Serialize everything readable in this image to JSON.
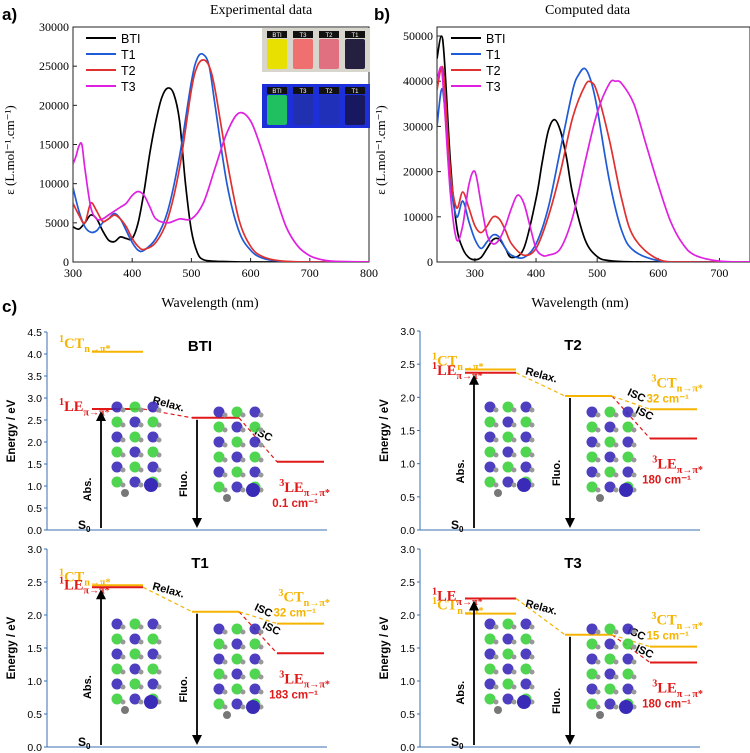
{
  "chart_data": [
    {
      "type": "line",
      "panel_label": "a)",
      "title": "Experimental data",
      "xlabel": "Wavelength (nm)",
      "ylabel": "ε (L.mol⁻¹.cm⁻¹)",
      "xlim": [
        300,
        800
      ],
      "ylim": [
        0,
        30000
      ],
      "xticks": [
        300,
        400,
        500,
        600,
        700,
        800
      ],
      "yticks": [
        0,
        5000,
        10000,
        15000,
        20000,
        25000,
        30000
      ],
      "legend": "top-left",
      "inset_vials": [
        "BTI",
        "T3",
        "T2",
        "T1"
      ],
      "series": [
        {
          "name": "BTI",
          "color": "#000000",
          "x": [
            300,
            310,
            320,
            330,
            340,
            350,
            360,
            370,
            380,
            390,
            400,
            410,
            420,
            430,
            440,
            450,
            460,
            470,
            480,
            490,
            500,
            510,
            520,
            540,
            560,
            600,
            700,
            800
          ],
          "y": [
            4500,
            4200,
            5000,
            6000,
            5500,
            4000,
            2800,
            2600,
            3200,
            3000,
            3000,
            5000,
            9000,
            14000,
            18000,
            21000,
            22200,
            21500,
            18000,
            10000,
            4000,
            1200,
            300,
            100,
            50,
            0,
            0,
            0
          ]
        },
        {
          "name": "T1",
          "color": "#1f5bd6",
          "x": [
            300,
            310,
            320,
            330,
            340,
            350,
            360,
            370,
            380,
            390,
            400,
            410,
            420,
            440,
            460,
            480,
            500,
            510,
            520,
            530,
            540,
            560,
            580,
            600,
            620,
            650,
            700,
            800
          ],
          "y": [
            9500,
            6500,
            4500,
            3800,
            4000,
            5000,
            5500,
            6200,
            5500,
            4000,
            2500,
            1500,
            1500,
            3000,
            6500,
            13500,
            23000,
            26000,
            26500,
            25000,
            20000,
            10000,
            4000,
            1500,
            500,
            100,
            0,
            0
          ]
        },
        {
          "name": "T2",
          "color": "#e03030",
          "x": [
            300,
            310,
            320,
            330,
            340,
            350,
            360,
            370,
            380,
            390,
            400,
            410,
            420,
            440,
            460,
            480,
            500,
            510,
            520,
            530,
            540,
            560,
            580,
            600,
            620,
            650,
            700,
            800
          ],
          "y": [
            7500,
            6000,
            5000,
            7500,
            6500,
            5200,
            5500,
            6000,
            5500,
            4500,
            3000,
            2000,
            1600,
            2500,
            5500,
            12000,
            22000,
            25000,
            25800,
            25000,
            22000,
            13000,
            5500,
            2000,
            700,
            150,
            0,
            0
          ]
        },
        {
          "name": "T3",
          "color": "#e020e0",
          "x": [
            300,
            305,
            310,
            315,
            320,
            330,
            340,
            350,
            360,
            370,
            380,
            390,
            400,
            410,
            420,
            430,
            440,
            460,
            480,
            500,
            520,
            540,
            560,
            580,
            600,
            620,
            640,
            660,
            680,
            700,
            720,
            740,
            800
          ],
          "y": [
            12500,
            13500,
            14800,
            15000,
            12000,
            7000,
            5500,
            5500,
            6000,
            6500,
            7000,
            7500,
            8500,
            9000,
            8500,
            7000,
            5500,
            5000,
            5500,
            5500,
            7500,
            12000,
            16500,
            19000,
            18000,
            14000,
            9000,
            4500,
            2000,
            800,
            300,
            100,
            0
          ]
        }
      ]
    },
    {
      "type": "line",
      "panel_label": "b)",
      "title": "Computed data",
      "xlabel": "Wavelength (nm)",
      "ylabel": "ε (L.mol⁻¹.cm⁻¹)",
      "xlim": [
        238,
        750
      ],
      "ylim": [
        0,
        52000
      ],
      "xticks": [
        300,
        400,
        500,
        600,
        700
      ],
      "yticks": [
        0,
        10000,
        20000,
        30000,
        40000,
        50000
      ],
      "legend": "top-left",
      "series": [
        {
          "name": "BTI",
          "color": "#000000",
          "x": [
            238,
            245,
            250,
            260,
            270,
            280,
            290,
            300,
            310,
            320,
            330,
            340,
            350,
            360,
            380,
            400,
            410,
            420,
            430,
            440,
            450,
            460,
            480,
            500,
            520,
            550,
            600,
            750
          ],
          "y": [
            45000,
            50000,
            45000,
            22000,
            8000,
            3000,
            1000,
            500,
            1000,
            3000,
            5000,
            5000,
            3000,
            1000,
            3000,
            14000,
            22000,
            29000,
            31500,
            29000,
            23000,
            15000,
            5000,
            1200,
            300,
            50,
            0,
            0
          ]
        },
        {
          "name": "T1",
          "color": "#1f5bd6",
          "x": [
            238,
            245,
            250,
            260,
            270,
            280,
            290,
            300,
            310,
            320,
            330,
            340,
            350,
            360,
            380,
            400,
            420,
            440,
            460,
            470,
            480,
            490,
            500,
            520,
            540,
            560,
            600,
            650,
            750
          ],
          "y": [
            30000,
            38000,
            35000,
            18000,
            10000,
            13500,
            9000,
            5000,
            3000,
            4500,
            6000,
            5500,
            3000,
            1500,
            1000,
            4000,
            12000,
            25000,
            38000,
            41500,
            42800,
            40000,
            34000,
            18000,
            7000,
            2500,
            300,
            0,
            0
          ]
        },
        {
          "name": "T2",
          "color": "#e03030",
          "x": [
            238,
            245,
            250,
            260,
            270,
            280,
            290,
            300,
            310,
            320,
            330,
            340,
            350,
            360,
            380,
            400,
            420,
            440,
            460,
            480,
            490,
            500,
            520,
            540,
            560,
            600,
            650,
            750
          ],
          "y": [
            38000,
            43000,
            40000,
            20000,
            12000,
            15500,
            12000,
            8000,
            6500,
            8000,
            10000,
            9500,
            7000,
            4000,
            1500,
            3000,
            10000,
            20000,
            32000,
            39000,
            39800,
            37500,
            27000,
            14000,
            5500,
            600,
            0,
            0
          ]
        },
        {
          "name": "T3",
          "color": "#e020e0",
          "x": [
            238,
            245,
            250,
            260,
            270,
            280,
            290,
            300,
            310,
            320,
            330,
            340,
            350,
            360,
            370,
            380,
            390,
            400,
            410,
            420,
            440,
            460,
            480,
            500,
            520,
            530,
            540,
            560,
            580,
            600,
            620,
            640,
            660,
            700,
            750
          ],
          "y": [
            40000,
            43000,
            35000,
            15000,
            5000,
            8000,
            17000,
            20000,
            13000,
            6000,
            4000,
            5000,
            8000,
            12000,
            14800,
            13000,
            8000,
            3000,
            1500,
            1500,
            3000,
            10000,
            22000,
            33000,
            39500,
            40000,
            39500,
            35000,
            26000,
            17000,
            9000,
            4000,
            1500,
            200,
            0
          ]
        }
      ]
    },
    {
      "type": "diagram",
      "panel_label": "c)",
      "ylabel": "Energy / eV",
      "common": {
        "ground": "S",
        "ground_sub": "0",
        "abs": "Abs.",
        "fluo": "Fluo.",
        "relax": "Relax.",
        "isc": "ISC"
      },
      "panels": [
        {
          "title": "BTI",
          "ymax": 4.5,
          "yticks": [
            "0.0",
            "0.5",
            "1.0",
            "1.5",
            "2.0",
            "2.5",
            "3.0",
            "3.5",
            "4.0",
            "4.5"
          ],
          "ct1": 4.05,
          "le1": 2.75,
          "relaxed": 2.55,
          "le3": 1.55,
          "ct3": null,
          "le3_gap": "0.1 cm⁻¹",
          "ct3_gap": null
        },
        {
          "title": "T2",
          "ymax": 3.0,
          "yticks": [
            "0.0",
            "0.5",
            "1.0",
            "1.5",
            "2.0",
            "2.5",
            "3.0"
          ],
          "ct1": 2.42,
          "le1": 2.37,
          "relaxed": 2.02,
          "le3": 1.38,
          "ct3": 1.82,
          "le3_gap": "180 cm⁻¹",
          "ct3_gap": "32 cm⁻¹"
        },
        {
          "title": "T1",
          "ymax": 3.0,
          "yticks": [
            "0.0",
            "0.5",
            "1.0",
            "1.5",
            "2.0",
            "2.5",
            "3.0"
          ],
          "ct1": 2.45,
          "le1": 2.42,
          "relaxed": 2.05,
          "le3": 1.42,
          "ct3": 1.87,
          "le3_gap": "183 cm⁻¹",
          "ct3_gap": "32 cm⁻¹"
        },
        {
          "title": "T3",
          "ymax": 3.0,
          "yticks": [
            "0.0",
            "0.5",
            "1.0",
            "1.5",
            "2.0",
            "2.5",
            "3.0"
          ],
          "ct1": 2.02,
          "le1": 2.25,
          "relaxed": 1.7,
          "le3": 1.28,
          "ct3": 1.52,
          "le3_gap": "180 cm⁻¹",
          "ct3_gap": "15 cm⁻¹"
        }
      ]
    }
  ],
  "colors": {
    "ct": "#f5b400",
    "le": "#e01818",
    "axis": "#3a6fb0",
    "green": "#3cd03c",
    "blue": "#3a2ab8"
  }
}
